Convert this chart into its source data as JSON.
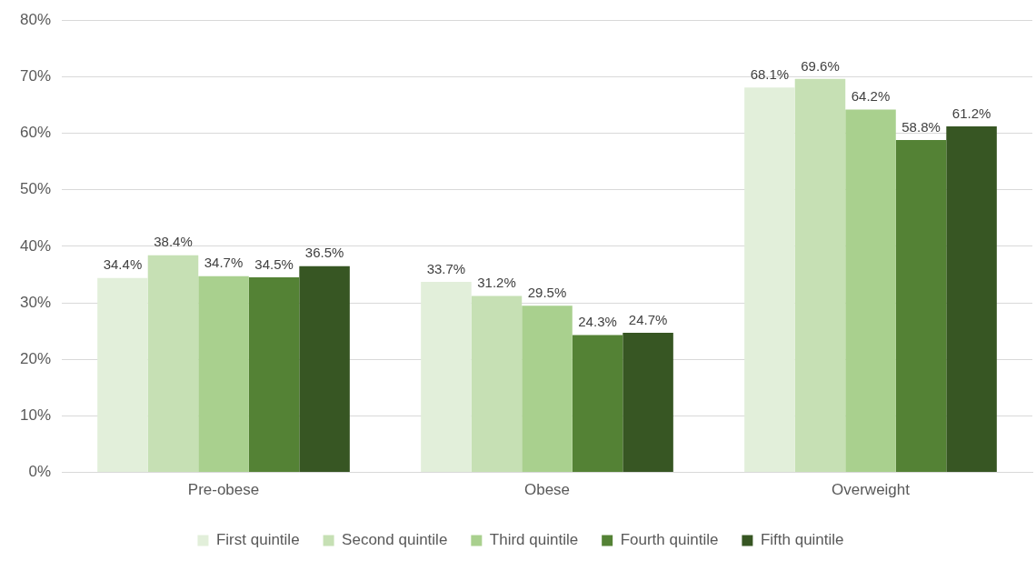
{
  "chart_data": {
    "type": "bar",
    "categories": [
      "Pre-obese",
      "Obese",
      "Overweight"
    ],
    "series": [
      {
        "name": "First quintile",
        "color": "#e2efda",
        "values": [
          34.4,
          33.7,
          68.1
        ],
        "value_labels": [
          "34.4%",
          "33.7%",
          "68.1%"
        ]
      },
      {
        "name": "Second quintile",
        "color": "#c6e0b4",
        "values": [
          38.4,
          31.2,
          69.6
        ],
        "value_labels": [
          "38.4%",
          "31.2%",
          "69.6%"
        ]
      },
      {
        "name": "Third quintile",
        "color": "#a9d08e",
        "values": [
          34.7,
          29.5,
          64.2
        ],
        "value_labels": [
          "34.7%",
          "29.5%",
          "64.2%"
        ]
      },
      {
        "name": "Fourth quintile",
        "color": "#548235",
        "values": [
          34.5,
          24.3,
          58.8
        ],
        "value_labels": [
          "34.5%",
          "24.3%",
          "58.8%"
        ]
      },
      {
        "name": "Fifth quintile",
        "color": "#375623",
        "values": [
          36.5,
          24.7,
          61.2
        ],
        "value_labels": [
          "36.5%",
          "24.7%",
          "61.2%"
        ]
      }
    ],
    "ylim": [
      0,
      80
    ],
    "yticks": [
      {
        "value": 0,
        "label": "0%"
      },
      {
        "value": 10,
        "label": "10%"
      },
      {
        "value": 20,
        "label": "20%"
      },
      {
        "value": 30,
        "label": "30%"
      },
      {
        "value": 40,
        "label": "40%"
      },
      {
        "value": 50,
        "label": "50%"
      },
      {
        "value": 60,
        "label": "60%"
      },
      {
        "value": 70,
        "label": "70%"
      },
      {
        "value": 80,
        "label": "80%"
      }
    ],
    "grid": "y",
    "legend": "bottom"
  }
}
